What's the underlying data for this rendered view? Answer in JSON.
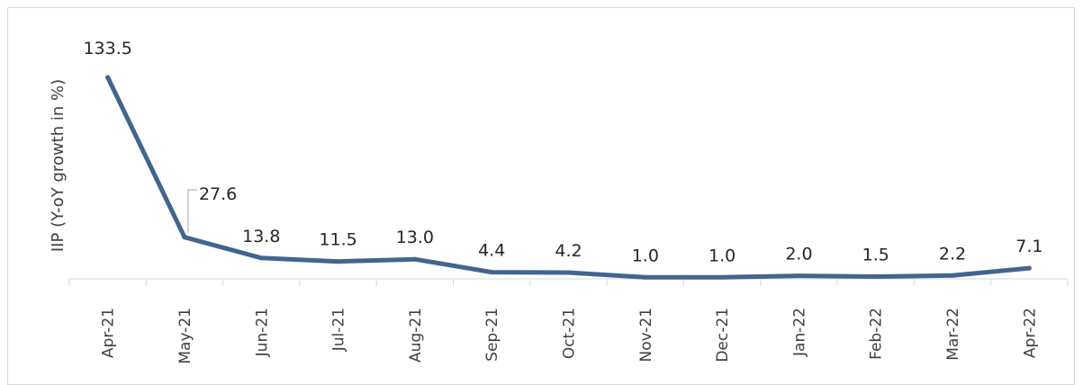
{
  "chart_data": {
    "type": "line",
    "categories": [
      "Apr-21",
      "May-21",
      "Jun-21",
      "Jul-21",
      "Aug-21",
      "Sep-21",
      "Oct-21",
      "Nov-21",
      "Dec-21",
      "Jan-22",
      "Feb-22",
      "Mar-22",
      "Apr-22"
    ],
    "values": [
      133.5,
      27.6,
      13.8,
      11.5,
      13.0,
      4.4,
      4.2,
      1.0,
      1.0,
      2.0,
      1.5,
      2.2,
      7.1
    ],
    "data_labels": [
      "133.5",
      "27.6",
      "13.8",
      "11.5",
      "13.0",
      "4.4",
      "4.2",
      "1.0",
      "1.0",
      "2.0",
      "1.5",
      "2.2",
      "7.1"
    ],
    "title": "",
    "xlabel": "",
    "ylabel": "IIP (Y-oY growth in %)",
    "series_color": "#41668e",
    "grid": false,
    "legend": "none"
  }
}
